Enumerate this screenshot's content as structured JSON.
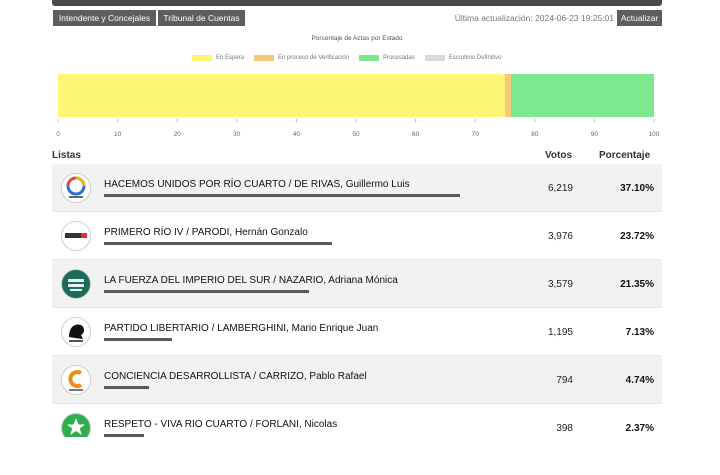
{
  "toolbar": {
    "tab_intendente": "Intendente y Concejales",
    "tab_tribunal": "Tribunal de Cuentas",
    "last_update": "Última actualización: 2024-06-23 19:25:01",
    "refresh_label": "Actualizar"
  },
  "chart_data": {
    "type": "bar",
    "orientation": "horizontal-stacked",
    "title": "Porcentaje de Actas por Estado",
    "legend_position": "top",
    "series": [
      {
        "name": "En Espera",
        "values": [
          75
        ],
        "color": "#fbf676"
      },
      {
        "name": "En proceso de Verificación",
        "values": [
          1
        ],
        "color": "#f5c97a"
      },
      {
        "name": "Procesadas",
        "values": [
          24
        ],
        "color": "#7de88e"
      },
      {
        "name": "Escrutinio Definitivo",
        "values": [
          0
        ],
        "color": "#d9d9d9"
      }
    ],
    "xlim": [
      0,
      100
    ],
    "xticks": [
      "0",
      "10",
      "20",
      "30",
      "40",
      "50",
      "60",
      "70",
      "80",
      "90",
      "100"
    ],
    "grid": false
  },
  "table": {
    "col_listas": "Listas",
    "col_votos": "Votos",
    "col_porcentaje": "Porcentaje",
    "rows": [
      {
        "name": "HACEMOS UNIDOS POR RÍO CUARTO / DE RIVAS, Guillermo Luis",
        "votes": "6,219",
        "pct": "37.10%",
        "share": 0.371,
        "logo_icon": "hacemos-unidos-logo-icon"
      },
      {
        "name": "PRIMERO RÍO IV / PARODI, Hernán Gonzalo",
        "votes": "3,976",
        "pct": "23.72%",
        "share": 0.2372,
        "logo_icon": "primero-rio-iv-logo-icon"
      },
      {
        "name": "LA FUERZA DEL IMPERIO DEL SUR / NAZARIO, Adriana Mónica",
        "votes": "3,579",
        "pct": "21.35%",
        "share": 0.2135,
        "logo_icon": "imperio-del-sur-logo-icon"
      },
      {
        "name": "PARTIDO LIBERTARIO / LAMBERGHINI, Mario Enrique Juan",
        "votes": "1,195",
        "pct": "7.13%",
        "share": 0.0713,
        "logo_icon": "libertario-lion-logo-icon"
      },
      {
        "name": "CONCIENCIA DESARROLLISTA / CARRIZO, Pablo Rafael",
        "votes": "794",
        "pct": "4.74%",
        "share": 0.0474,
        "logo_icon": "conciencia-desarrollista-logo-icon"
      },
      {
        "name": "RESPETO - VIVA RIO CUARTO / FORLANI, Nicolas",
        "votes": "398",
        "pct": "2.37%",
        "share": 0.0237,
        "logo_icon": "respeto-star-logo-icon"
      }
    ]
  },
  "colors": {
    "button_bg": "#5e5e5e",
    "underline": "#5a5a5a",
    "row_shade": "#f2f2f2"
  }
}
